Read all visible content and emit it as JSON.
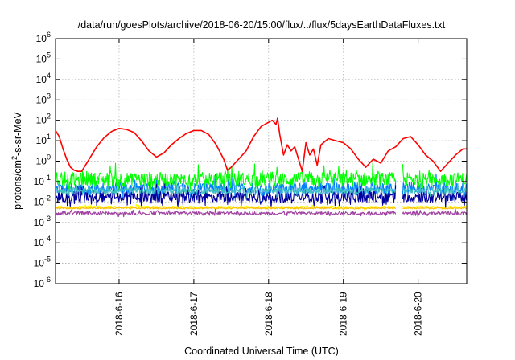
{
  "chart_data": {
    "type": "line",
    "title": "/data/run/goesPlots/archive/2018-06-20/15:00/flux/../flux/5daysEarthDataFluxes.txt",
    "xlabel": "Coordinated Universal Time (UTC)",
    "ylabel": "protons/cm2-s-sr-MeV",
    "ylabel_parts": {
      "pre": "protons/cm",
      "sup": "2",
      "post": "-s-sr-MeV"
    },
    "x_ticks": [
      "2018-6-16",
      "2018-6-17",
      "2018-6-18",
      "2018-6-19",
      "2018-6-20"
    ],
    "x_tick_days": [
      1,
      2,
      3,
      4,
      5
    ],
    "xlim_days": [
      0.15,
      5.65
    ],
    "y_scale": "log",
    "y_ticks": [
      {
        "base": "10",
        "exp": "-6",
        "value": -6
      },
      {
        "base": "10",
        "exp": "-5",
        "value": -5
      },
      {
        "base": "10",
        "exp": "-4",
        "value": -4
      },
      {
        "base": "10",
        "exp": "-3",
        "value": -3
      },
      {
        "base": "10",
        "exp": "-2",
        "value": -2
      },
      {
        "base": "10",
        "exp": "-1",
        "value": -1
      },
      {
        "base": "10",
        "exp": "0",
        "value": 0
      },
      {
        "base": "10",
        "exp": "1",
        "value": 1
      },
      {
        "base": "10",
        "exp": "2",
        "value": 2
      },
      {
        "base": "10",
        "exp": "3",
        "value": 3
      },
      {
        "base": "10",
        "exp": "4",
        "value": 4
      },
      {
        "base": "10",
        "exp": "5",
        "value": 5
      },
      {
        "base": "10",
        "exp": "6",
        "value": 6
      }
    ],
    "ylim_log10": [
      -6,
      6
    ],
    "grid": true,
    "data_gap_days": [
      4.7,
      4.79
    ],
    "series": [
      {
        "color": "#ff0000",
        "points_day_log10": [
          [
            0.15,
            1.5
          ],
          [
            0.2,
            1.2
          ],
          [
            0.25,
            0.6
          ],
          [
            0.3,
            0.1
          ],
          [
            0.35,
            -0.3
          ],
          [
            0.4,
            -0.45
          ],
          [
            0.45,
            -0.5
          ],
          [
            0.5,
            -0.5
          ],
          [
            0.55,
            -0.2
          ],
          [
            0.6,
            0.1
          ],
          [
            0.7,
            0.7
          ],
          [
            0.8,
            1.15
          ],
          [
            0.9,
            1.45
          ],
          [
            1.0,
            1.6
          ],
          [
            1.1,
            1.55
          ],
          [
            1.2,
            1.4
          ],
          [
            1.3,
            1.0
          ],
          [
            1.4,
            0.5
          ],
          [
            1.5,
            0.2
          ],
          [
            1.6,
            0.4
          ],
          [
            1.7,
            0.8
          ],
          [
            1.8,
            1.1
          ],
          [
            1.9,
            1.35
          ],
          [
            2.0,
            1.5
          ],
          [
            2.1,
            1.5
          ],
          [
            2.2,
            1.3
          ],
          [
            2.3,
            0.8
          ],
          [
            2.4,
            0.1
          ],
          [
            2.45,
            -0.45
          ],
          [
            2.5,
            -0.3
          ],
          [
            2.6,
            0.1
          ],
          [
            2.7,
            0.5
          ],
          [
            2.8,
            1.2
          ],
          [
            2.9,
            1.7
          ],
          [
            3.0,
            1.9
          ],
          [
            3.05,
            2.0
          ],
          [
            3.1,
            1.8
          ],
          [
            3.12,
            2.1
          ],
          [
            3.15,
            1.3
          ],
          [
            3.2,
            0.3
          ],
          [
            3.25,
            0.8
          ],
          [
            3.3,
            0.5
          ],
          [
            3.35,
            0.7
          ],
          [
            3.4,
            0.1
          ],
          [
            3.45,
            -0.5
          ],
          [
            3.5,
            0.9
          ],
          [
            3.55,
            0.3
          ],
          [
            3.6,
            0.6
          ],
          [
            3.65,
            -0.2
          ],
          [
            3.7,
            0.8
          ],
          [
            3.8,
            1.1
          ],
          [
            3.9,
            1.0
          ],
          [
            4.0,
            0.9
          ],
          [
            4.1,
            0.6
          ],
          [
            4.2,
            0.1
          ],
          [
            4.3,
            -0.3
          ],
          [
            4.4,
            0.1
          ],
          [
            4.5,
            -0.1
          ],
          [
            4.6,
            0.5
          ],
          [
            4.7,
            0.7
          ],
          [
            4.8,
            1.1
          ],
          [
            4.9,
            1.2
          ],
          [
            5.0,
            0.8
          ],
          [
            5.1,
            0.3
          ],
          [
            5.2,
            0.0
          ],
          [
            5.3,
            -0.5
          ],
          [
            5.4,
            -0.1
          ],
          [
            5.5,
            0.3
          ],
          [
            5.6,
            0.6
          ],
          [
            5.65,
            0.6
          ]
        ]
      },
      {
        "color": "#00ff00",
        "base_log10": -0.9,
        "noise": 0.35,
        "spikes": 0.15
      },
      {
        "color": "#007fff",
        "base_log10": -1.35,
        "noise": 0.3,
        "spikes": 0.2
      },
      {
        "color": "#00009f",
        "base_log10": -1.75,
        "noise": 0.25,
        "spikes": 0.3
      },
      {
        "color": "#3fbfbf",
        "base_log10": -1.45,
        "noise": 0.15,
        "spikes": 0.1
      },
      {
        "color": "#ffff00",
        "base_log10": -2.25,
        "noise": 0.06,
        "spikes": 0.05
      },
      {
        "color": "#ffbf00",
        "base_log10": -2.3,
        "noise": 0.04,
        "spikes": 0.0
      },
      {
        "color": "#9f3f9f",
        "base_log10": -2.55,
        "noise": 0.08,
        "spikes": 0.2
      }
    ]
  }
}
